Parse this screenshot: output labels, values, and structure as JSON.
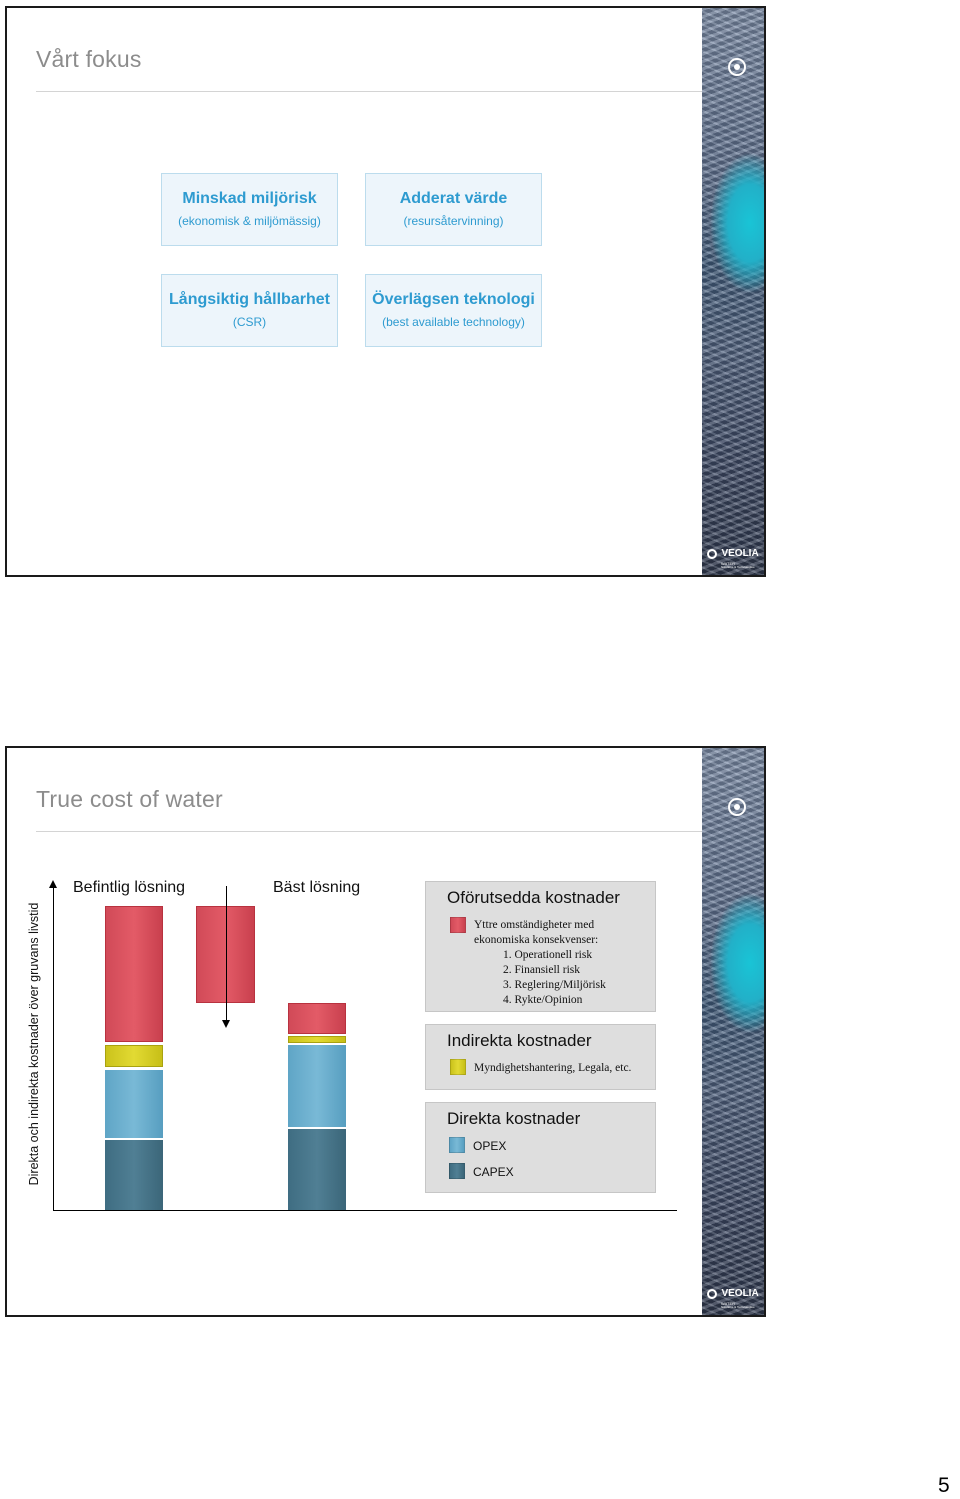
{
  "slide1": {
    "title": "Vårt fokus",
    "boxes": [
      {
        "title": "Minskad miljörisk",
        "subtitle": "(ekonomisk & miljömässig)"
      },
      {
        "title": "Adderat värde",
        "subtitle": "(resursåtervinning)"
      },
      {
        "title": "Långsiktig hållbarhet",
        "subtitle": "(CSR)"
      },
      {
        "title": "Överlägsen teknologi",
        "subtitle": "(best available technology)"
      }
    ]
  },
  "slide2": {
    "title": "True cost of water",
    "y_axis_label": "Direkta och indirekta kostnader över gruvans livstid",
    "column_labels": {
      "left": "Befintlig lösning",
      "right": "Bäst lösning"
    },
    "legend": {
      "unforeseen": {
        "title": "Oförutsedda kostnader",
        "description_line1": "Yttre omständigheter med",
        "description_line2": "ekonomiska konsekvenser:",
        "items": [
          "1. Operationell risk",
          "2. Finansiell risk",
          "3. Reglering/Miljörisk",
          "4. Rykte/Opinion"
        ]
      },
      "indirect": {
        "title": "Indirekta kostnader",
        "description": "Myndighetshantering, Legala, etc."
      },
      "direct": {
        "title": "Direkta kostnader",
        "items": [
          "OPEX",
          "CAPEX"
        ]
      }
    }
  },
  "brand": {
    "name": "VEOLIA",
    "sub": "WATER",
    "tagline": "Solutions & Technologies"
  },
  "page_number": "5",
  "colors": {
    "unforeseen": "#d94a57",
    "indirect": "#d8d028",
    "opex": "#6aaecd",
    "capex": "#476f84",
    "accent_blue": "#2e9bd0",
    "legend_bg": "#dedede"
  },
  "icons": [
    "veolia-logo-icon",
    "up-arrow-icon",
    "down-arrow-icon"
  ]
}
